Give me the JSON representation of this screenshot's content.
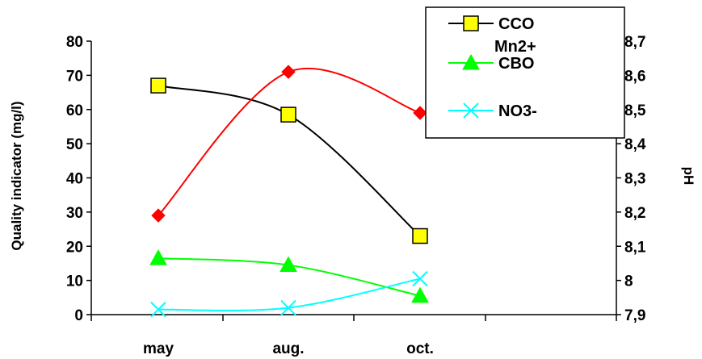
{
  "chart_data": {
    "type": "line",
    "categories": [
      "may",
      "aug.",
      "oct."
    ],
    "ylabel": "Quality indicator (mg/l)",
    "y2label": "pH",
    "ylim": [
      0,
      80
    ],
    "y_ticks": [
      "0",
      "10",
      "20",
      "30",
      "40",
      "50",
      "60",
      "70",
      "80"
    ],
    "y2lim": [
      7.9,
      8.7
    ],
    "y2_ticks": [
      "7,9",
      "8",
      "8,1",
      "8,2",
      "8,3",
      "8,4",
      "8,5",
      "8,6",
      "8,7"
    ],
    "legend_position": "top-right",
    "grid": false,
    "series": [
      {
        "name": "CCO",
        "axis": "left",
        "values": [
          67,
          58.5,
          23
        ],
        "color": "#000000",
        "marker": "square",
        "marker_color": "#ffff00"
      },
      {
        "name": "Mn2+",
        "axis": "right",
        "values": [
          8.19,
          8.61,
          8.49
        ],
        "color": "#ff0000",
        "marker": "diamond",
        "marker_color": "#ff0000"
      },
      {
        "name": "CBO",
        "axis": "left",
        "values": [
          16.5,
          14.5,
          5.5
        ],
        "color": "#00ff00",
        "marker": "triangle",
        "marker_color": "#00ff00"
      },
      {
        "name": "NO3-",
        "axis": "left",
        "values": [
          1.5,
          2,
          10.5
        ],
        "color": "#00ffff",
        "marker": "x",
        "marker_color": "#00ffff"
      }
    ]
  }
}
